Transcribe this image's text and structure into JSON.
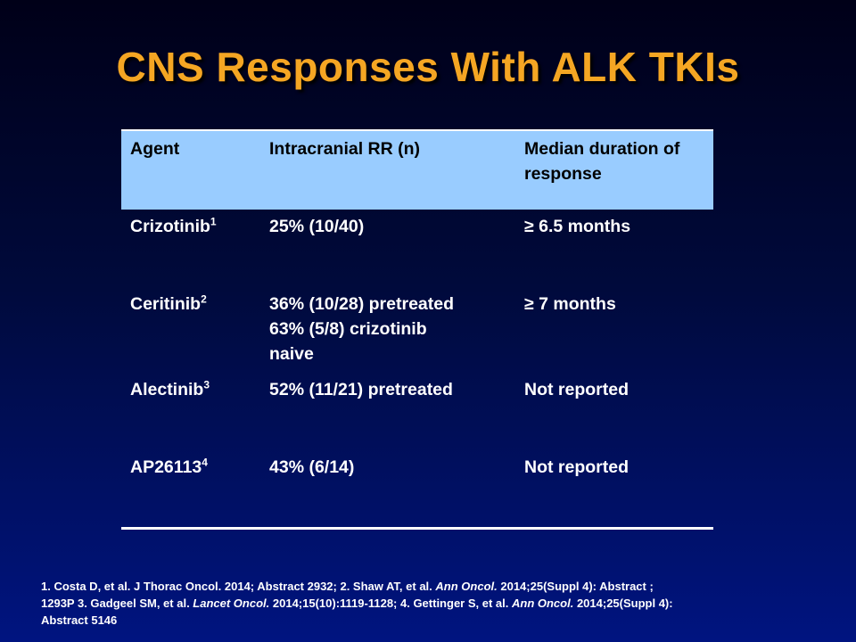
{
  "title": "CNS Responses With ALK TKIs",
  "table": {
    "headers": [
      "Agent",
      "Intracranial RR (n)",
      "Median duration of response"
    ],
    "rows": [
      {
        "agent": "Crizotinib",
        "ref": "1",
        "rr": [
          "25%  (10/40)"
        ],
        "duration": "≥ 6.5 months"
      },
      {
        "agent": "Ceritinib",
        "ref": "2",
        "rr": [
          "36%  (10/28) pretreated",
          "63%  (5/8) crizotinib",
          "naive"
        ],
        "duration": "≥ 7 months"
      },
      {
        "agent": "Alectinib",
        "ref": "3",
        "rr": [
          "52%  (11/21) pretreated"
        ],
        "duration": "Not reported"
      },
      {
        "agent": "AP26113",
        "ref": "4",
        "rr": [
          "43%  (6/14)"
        ],
        "duration": "Not reported"
      }
    ]
  },
  "references": {
    "r1": "1. Costa D, et al. J Thorac Oncol. 2014; Abstract 2932; 2. Shaw AT, et al. ",
    "r1_journal": "Ann Oncol.",
    "r1_rest": " 2014;25(Suppl 4): Abstract ;",
    "r2": "1293P 3. Gadgeel SM, et al. ",
    "r2_journal": "Lancet Oncol.",
    "r2_rest": " 2014;15(10):1119-1128; 4. Gettinger S, et al. ",
    "r2_journal2": "Ann Oncol.",
    "r2_rest2": " 2014;25(Suppl 4):",
    "r3": "Abstract 5146"
  }
}
